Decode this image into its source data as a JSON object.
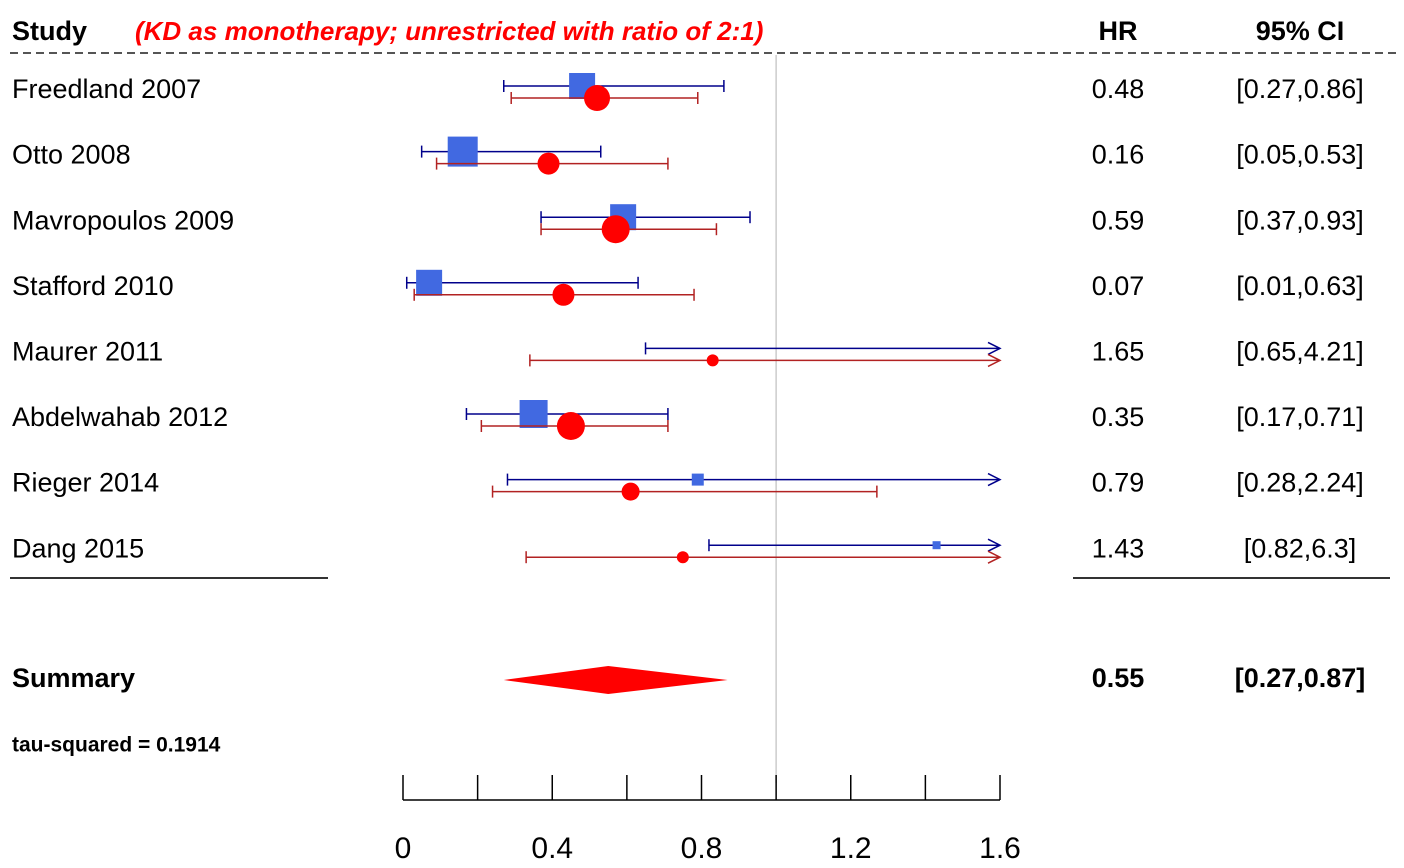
{
  "chart_data": {
    "type": "forest",
    "header": {
      "study": "Study",
      "subtitle": "(KD as monotherapy; unrestricted with ratio of 2:1)",
      "hr": "HR",
      "ci": "95% CI"
    },
    "categories": [
      "Freedland 2007",
      "Otto 2008",
      "Mavropoulos 2009",
      "Stafford 2010",
      "Maurer 2011",
      "Abdelwahab 2012",
      "Rieger 2014",
      "Dang 2015"
    ],
    "series": [
      {
        "color": "#4169e1",
        "line_color": "#00008b",
        "values": [
          0.48,
          0.16,
          0.59,
          0.07,
          1.65,
          0.35,
          0.79,
          1.43
        ],
        "lower": [
          0.27,
          0.05,
          0.37,
          0.01,
          0.65,
          0.17,
          0.28,
          0.82
        ],
        "upper": [
          0.86,
          0.53,
          0.93,
          0.63,
          4.21,
          0.71,
          2.24,
          6.3
        ],
        "weights": [
          26,
          30,
          26,
          26,
          12,
          28,
          12,
          8
        ],
        "ci_labels": [
          "[0.27,0.86]",
          "[0.05,0.53]",
          "[0.37,0.93]",
          "[0.01,0.63]",
          "[0.65,4.21]",
          "[0.17,0.71]",
          "[0.28,2.24]",
          "[0.82,6.3]"
        ]
      },
      {
        "color": "#ff0000",
        "line_color": "#b22222",
        "values": [
          0.52,
          0.39,
          0.57,
          0.43,
          0.83,
          0.45,
          0.61,
          0.75
        ],
        "lower": [
          0.29,
          0.09,
          0.37,
          0.03,
          0.34,
          0.21,
          0.24,
          0.33
        ],
        "upper": [
          0.79,
          0.71,
          0.84,
          0.78,
          null,
          0.71,
          1.27,
          null
        ],
        "weights": [
          26,
          22,
          28,
          22,
          12,
          28,
          18,
          12
        ]
      }
    ],
    "summary": {
      "label": "Summary",
      "value": 0.55,
      "lower": 0.27,
      "upper": 0.87,
      "ci_label": "[0.27,0.87]",
      "color": "#ff0000"
    },
    "note": "tau-squared = 0.1914",
    "reference_line": 1,
    "xlim": [
      0,
      1.6
    ],
    "xticks": [
      0,
      0.4,
      0.8,
      1.2,
      1.6
    ],
    "minor_xticks": [
      0.2,
      0.6,
      1.0,
      1.4
    ]
  }
}
